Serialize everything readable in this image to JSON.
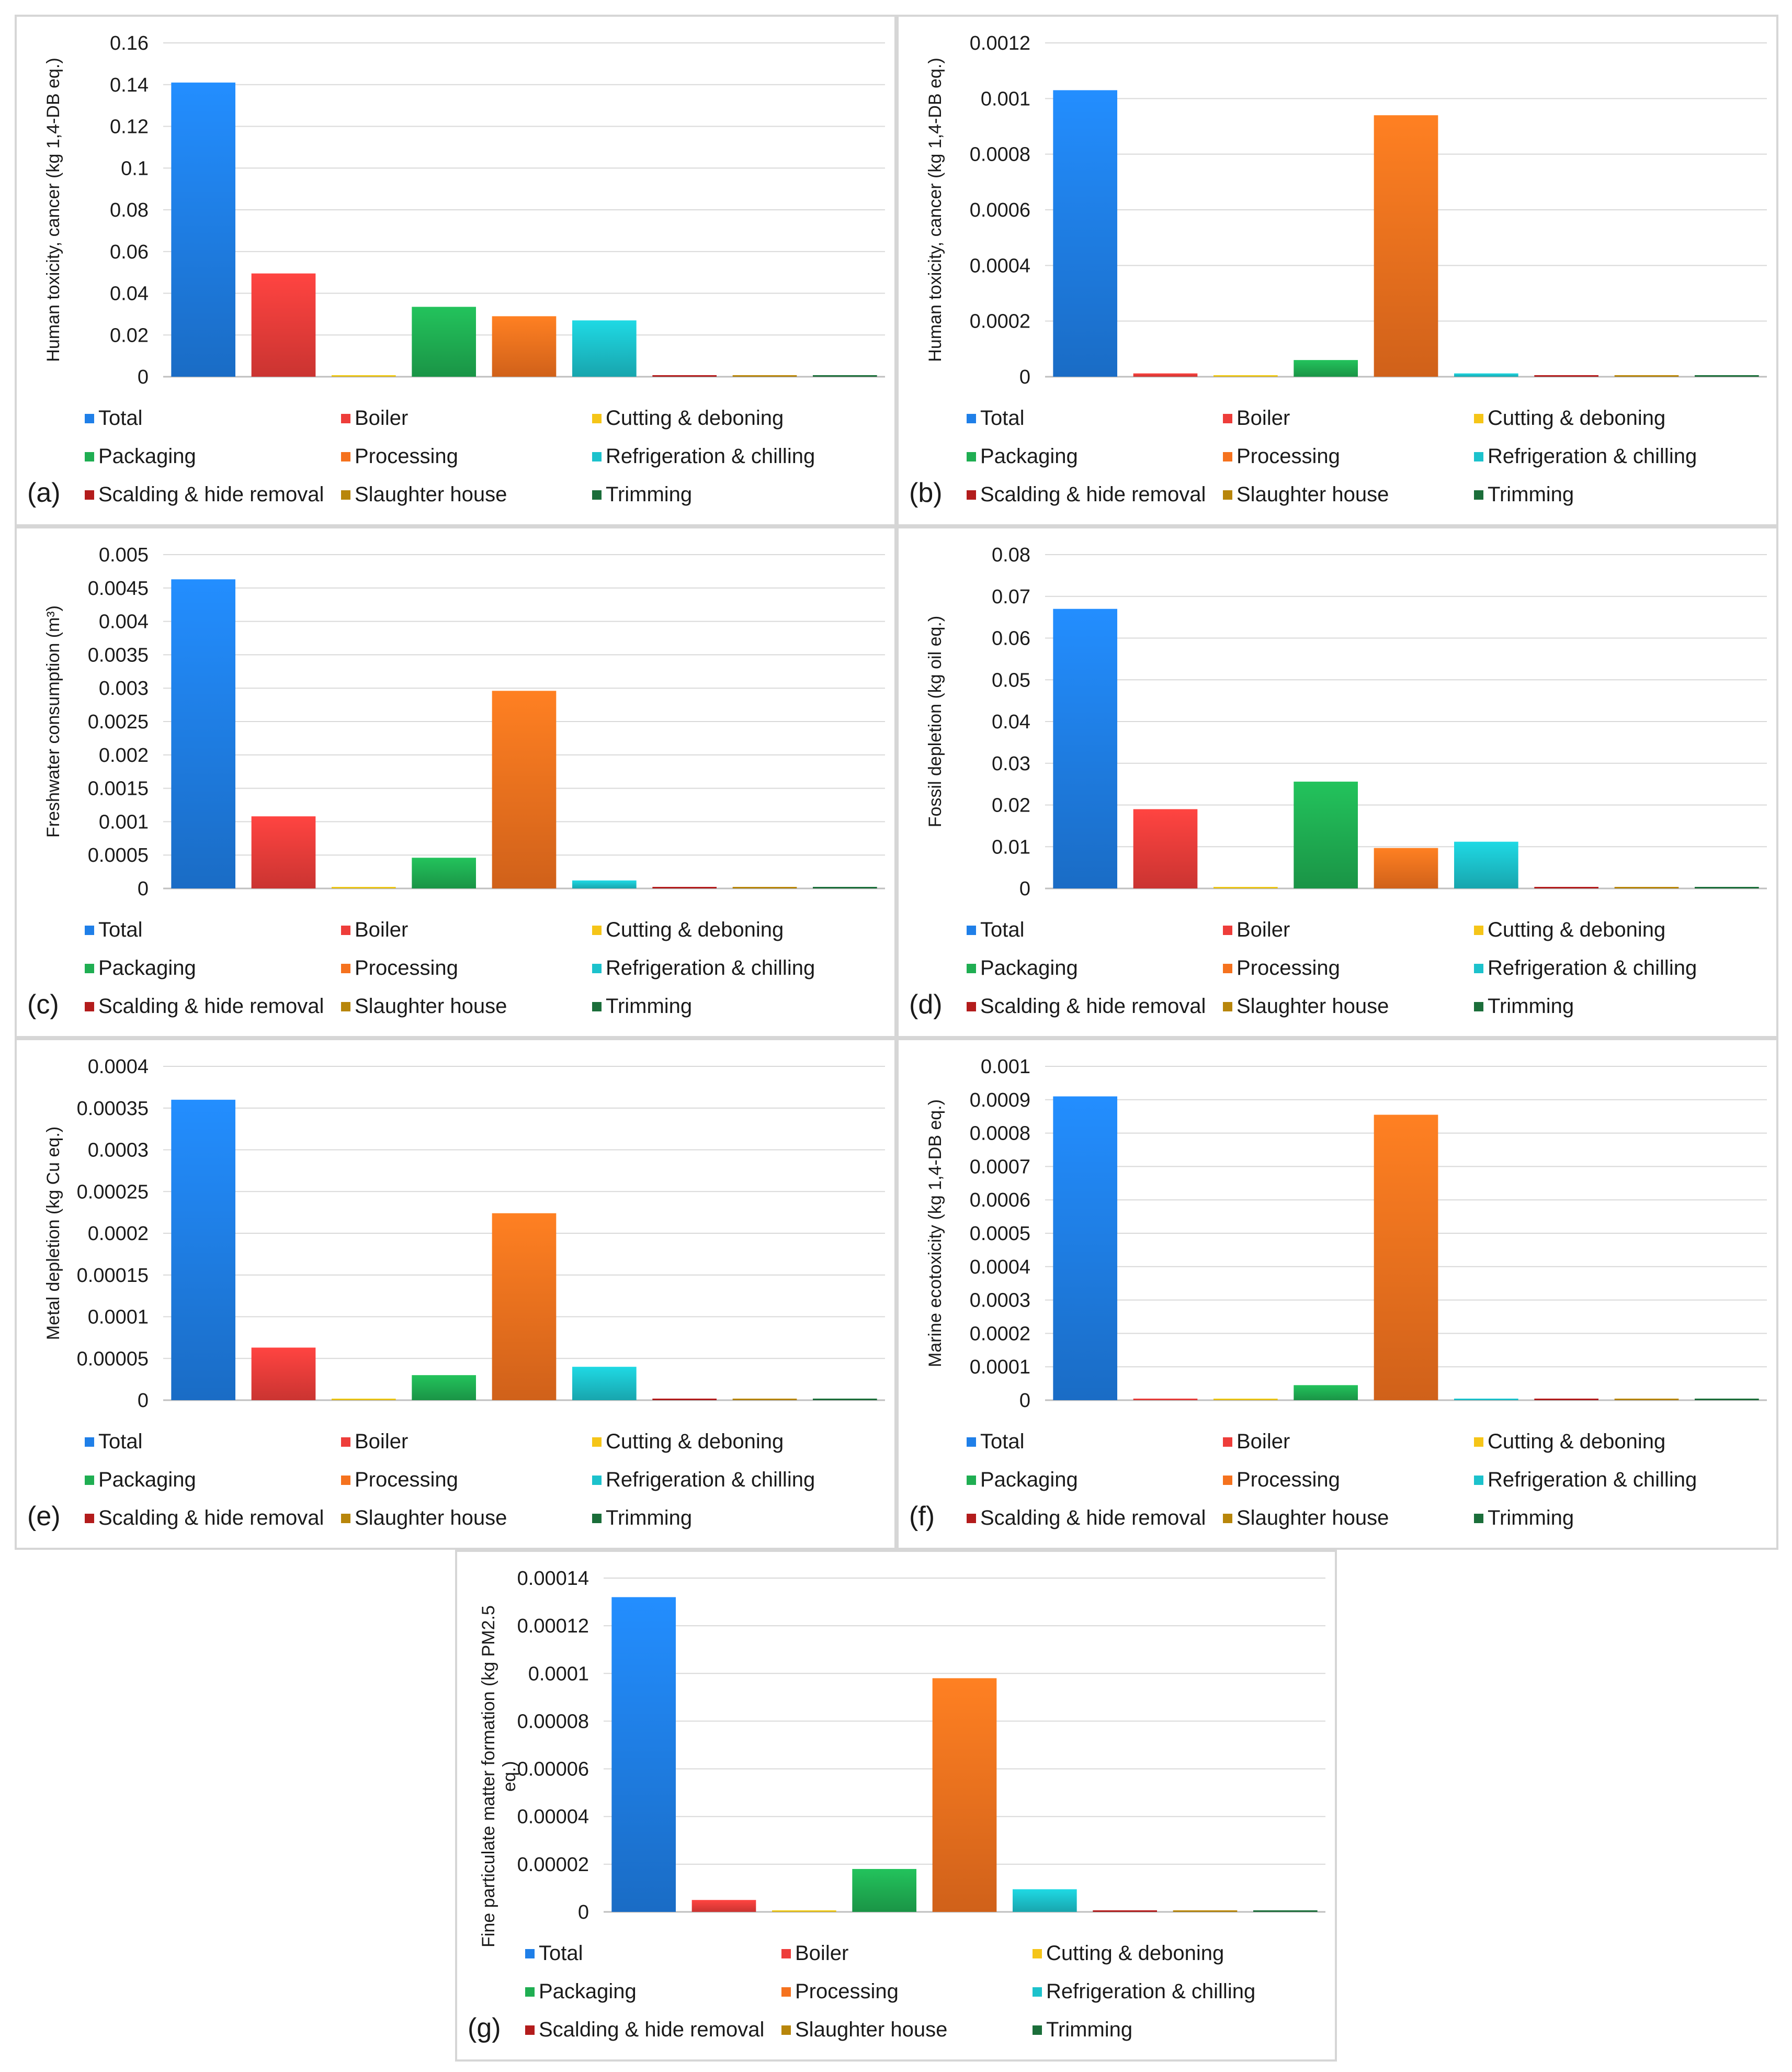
{
  "legend": [
    {
      "name": "Total",
      "color": "#1f7fe8"
    },
    {
      "name": "Boiler",
      "color": "#ee3d3a"
    },
    {
      "name": "Cutting & deboning",
      "color": "#f5c518"
    },
    {
      "name": "Packaging",
      "color": "#1fae52"
    },
    {
      "name": "Processing",
      "color": "#f5721e"
    },
    {
      "name": "Refrigeration & chilling",
      "color": "#1cc2cc"
    },
    {
      "name": "Scalding & hide removal",
      "color": "#b31c1c"
    },
    {
      "name": "Slaughter house",
      "color": "#b8860b"
    },
    {
      "name": "Trimming",
      "color": "#1b6e3a"
    }
  ],
  "chart_data": [
    {
      "id": "a",
      "panel_label": "(a)",
      "type": "bar",
      "ylabel": "Human toxicity, cancer (kg 1,4-DB eq.)",
      "ylim": [
        0,
        0.16
      ],
      "ticks": [
        "0",
        "0.02",
        "0.04",
        "0.06",
        "0.08",
        "0.1",
        "0.12",
        "0.14",
        "0.16"
      ],
      "categories": [
        "Total",
        "Boiler",
        "Cutting & deboning",
        "Packaging",
        "Processing",
        "Refrigeration & chilling",
        "Scalding & hide removal",
        "Slaughter house",
        "Trimming"
      ],
      "values": [
        0.141,
        0.0495,
        0.0005,
        0.0335,
        0.029,
        0.027,
        0.0001,
        0.0005,
        0.0005
      ]
    },
    {
      "id": "b",
      "panel_label": "(b)",
      "type": "bar",
      "ylabel": "Human toxicity, cancer (kg 1,4-DB eq.)",
      "ylim": [
        0,
        0.0012
      ],
      "ticks": [
        "0",
        "0.0002",
        "0.0004",
        "0.0006",
        "0.0008",
        "0.001",
        "0.0012"
      ],
      "categories": [
        "Total",
        "Boiler",
        "Cutting & deboning",
        "Packaging",
        "Processing",
        "Refrigeration & chilling",
        "Scalding & hide removal",
        "Slaughter house",
        "Trimming"
      ],
      "values": [
        0.00103,
        1.2e-05,
        3e-06,
        6e-05,
        0.00094,
        1.2e-05,
        4e-06,
        4e-06,
        3e-06
      ]
    },
    {
      "id": "c",
      "panel_label": "(c)",
      "type": "bar",
      "ylabel": "Freshwater consumption (m³)",
      "ylim": [
        0,
        0.005
      ],
      "ticks": [
        "0",
        "0.0005",
        "0.001",
        "0.0015",
        "0.002",
        "0.0025",
        "0.003",
        "0.0035",
        "0.004",
        "0.0045",
        "0.005"
      ],
      "categories": [
        "Total",
        "Boiler",
        "Cutting & deboning",
        "Packaging",
        "Processing",
        "Refrigeration & chilling",
        "Scalding & hide removal",
        "Slaughter house",
        "Trimming"
      ],
      "values": [
        0.00463,
        0.00108,
        1e-05,
        0.00046,
        0.00296,
        0.00012,
        1e-05,
        1e-05,
        1e-05
      ]
    },
    {
      "id": "d",
      "panel_label": "(d)",
      "type": "bar",
      "ylabel": "Fossil depletion (kg oil eq.)",
      "ylim": [
        0,
        0.08
      ],
      "ticks": [
        "0",
        "0.01",
        "0.02",
        "0.03",
        "0.04",
        "0.05",
        "0.06",
        "0.07",
        "0.08"
      ],
      "categories": [
        "Total",
        "Boiler",
        "Cutting & deboning",
        "Packaging",
        "Processing",
        "Refrigeration & chilling",
        "Scalding & hide removal",
        "Slaughter house",
        "Trimming"
      ],
      "values": [
        0.067,
        0.019,
        0.0002,
        0.0256,
        0.0097,
        0.0112,
        0.0003,
        0.0003,
        0.0002
      ]
    },
    {
      "id": "e",
      "panel_label": "(e)",
      "type": "bar",
      "ylabel": "Metal depletion (kg Cu eq.)",
      "ylim": [
        0,
        0.0004
      ],
      "ticks": [
        "0",
        "0.00005",
        "0.0001",
        "0.00015",
        "0.0002",
        "0.00025",
        "0.0003",
        "0.00035",
        "0.0004"
      ],
      "categories": [
        "Total",
        "Boiler",
        "Cutting & deboning",
        "Packaging",
        "Processing",
        "Refrigeration & chilling",
        "Scalding & hide removal",
        "Slaughter house",
        "Trimming"
      ],
      "values": [
        0.00036,
        6.3e-05,
        1e-06,
        3e-05,
        0.000224,
        4e-05,
        1e-06,
        1e-06,
        1e-06
      ]
    },
    {
      "id": "f",
      "panel_label": "(f)",
      "type": "bar",
      "ylabel": "Marine ecotoxicity (kg 1,4-DB eq.)",
      "ylim": [
        0,
        0.001
      ],
      "ticks": [
        "0",
        "0.0001",
        "0.0002",
        "0.0003",
        "0.0004",
        "0.0005",
        "0.0006",
        "0.0007",
        "0.0008",
        "0.0009",
        "0.001"
      ],
      "categories": [
        "Total",
        "Boiler",
        "Cutting & deboning",
        "Packaging",
        "Processing",
        "Refrigeration & chilling",
        "Scalding & hide removal",
        "Slaughter house",
        "Trimming"
      ],
      "values": [
        0.00091,
        3e-06,
        2e-06,
        4.5e-05,
        0.000855,
        3e-06,
        3e-06,
        3e-06,
        2e-06
      ]
    },
    {
      "id": "g",
      "panel_label": "(g)",
      "type": "bar",
      "ylabel": "Fine particulate matter formation (kg PM2.5 eq.)",
      "ylim": [
        0,
        0.00014
      ],
      "ticks": [
        "0",
        "0.00002",
        "0.00004",
        "0.00006",
        "0.00008",
        "0.0001",
        "0.00012",
        "0.00014"
      ],
      "categories": [
        "Total",
        "Boiler",
        "Cutting & deboning",
        "Packaging",
        "Processing",
        "Refrigeration & chilling",
        "Scalding & hide removal",
        "Slaughter house",
        "Trimming"
      ],
      "values": [
        0.000132,
        5e-06,
        5e-07,
        1.8e-05,
        9.8e-05,
        9.5e-06,
        5e-07,
        5e-07,
        5e-07
      ]
    }
  ]
}
